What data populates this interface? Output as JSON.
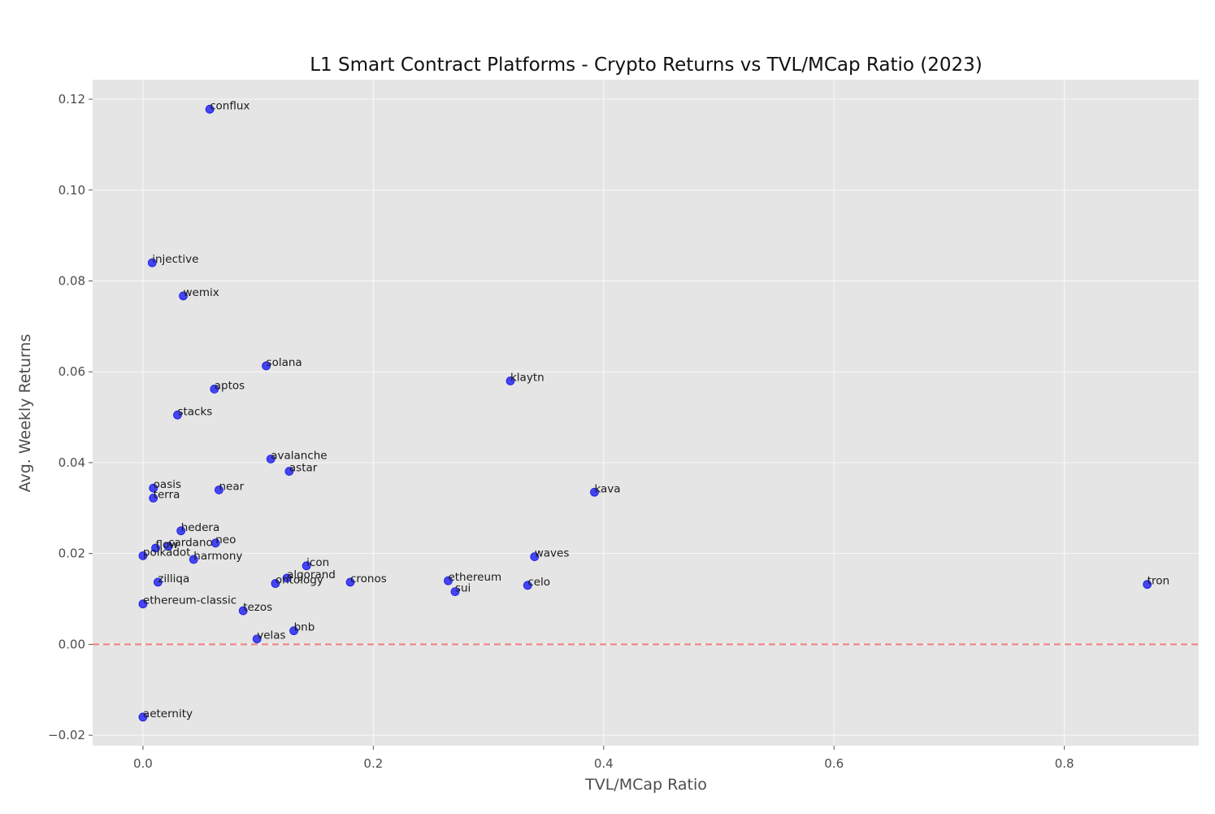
{
  "chart_data": {
    "type": "scatter",
    "title": "L1 Smart Contract Platforms - Crypto Returns vs TVL/MCap Ratio (2023)",
    "xlabel": "TVL/MCap Ratio",
    "ylabel": "Avg. Weekly Returns",
    "xlim": [
      -0.0437,
      0.9167
    ],
    "ylim": [
      -0.0223,
      0.1243
    ],
    "xticks": [
      0.0,
      0.2,
      0.4,
      0.6,
      0.8
    ],
    "xtick_labels": [
      "0.0",
      "0.2",
      "0.4",
      "0.6",
      "0.8"
    ],
    "yticks": [
      -0.02,
      0.0,
      0.02,
      0.04,
      0.06,
      0.08,
      0.1,
      0.12
    ],
    "ytick_labels": [
      "−0.02",
      "0.00",
      "0.02",
      "0.04",
      "0.06",
      "0.08",
      "0.10",
      "0.12"
    ],
    "grid": true,
    "reference_line": {
      "y": 0.0,
      "style": "dashed",
      "color": "#f08080"
    },
    "background_color": "#e5e5e5",
    "point_color": "#0000ff",
    "points": [
      {
        "label": "conflux",
        "x": 0.058,
        "y": 0.1178
      },
      {
        "label": "injective",
        "x": 0.008,
        "y": 0.084
      },
      {
        "label": "wemix",
        "x": 0.035,
        "y": 0.0767
      },
      {
        "label": "solana",
        "x": 0.107,
        "y": 0.0613
      },
      {
        "label": "aptos",
        "x": 0.062,
        "y": 0.0562
      },
      {
        "label": "klaytn",
        "x": 0.319,
        "y": 0.058
      },
      {
        "label": "stacks",
        "x": 0.03,
        "y": 0.0505
      },
      {
        "label": "avalanche",
        "x": 0.111,
        "y": 0.0408
      },
      {
        "label": "astar",
        "x": 0.127,
        "y": 0.0381
      },
      {
        "label": "oasis",
        "x": 0.009,
        "y": 0.0344
      },
      {
        "label": "near",
        "x": 0.066,
        "y": 0.034
      },
      {
        "label": "kava",
        "x": 0.392,
        "y": 0.0335
      },
      {
        "label": "terra",
        "x": 0.009,
        "y": 0.0322
      },
      {
        "label": "hedera",
        "x": 0.033,
        "y": 0.025
      },
      {
        "label": "neo",
        "x": 0.063,
        "y": 0.0223
      },
      {
        "label": "cardano",
        "x": 0.022,
        "y": 0.0216
      },
      {
        "label": "flow",
        "x": 0.011,
        "y": 0.0212
      },
      {
        "label": "polkadot",
        "x": 0.0,
        "y": 0.0195
      },
      {
        "label": "velas",
        "x": 0.099,
        "y": 0.0012
      },
      {
        "label": "waves",
        "x": 0.34,
        "y": 0.0193
      },
      {
        "label": "harmony",
        "x": 0.044,
        "y": 0.0187
      },
      {
        "label": "icon",
        "x": 0.142,
        "y": 0.0173
      },
      {
        "label": "algorand",
        "x": 0.125,
        "y": 0.0146
      },
      {
        "label": "ontology",
        "x": 0.115,
        "y": 0.0134
      },
      {
        "label": "cronos",
        "x": 0.18,
        "y": 0.0137
      },
      {
        "label": "ethereum",
        "x": 0.265,
        "y": 0.014
      },
      {
        "label": "celo",
        "x": 0.334,
        "y": 0.013
      },
      {
        "label": "sui",
        "x": 0.271,
        "y": 0.0116
      },
      {
        "label": "tron",
        "x": 0.872,
        "y": 0.0132
      },
      {
        "label": "zilliqa",
        "x": 0.013,
        "y": 0.0137
      },
      {
        "label": "ethereum-classic",
        "x": 0.0,
        "y": 0.0089
      },
      {
        "label": "tezos",
        "x": 0.087,
        "y": 0.0074
      },
      {
        "label": "bnb",
        "x": 0.131,
        "y": 0.003
      },
      {
        "label": "aeternity",
        "x": 0.0,
        "y": -0.016
      }
    ]
  }
}
